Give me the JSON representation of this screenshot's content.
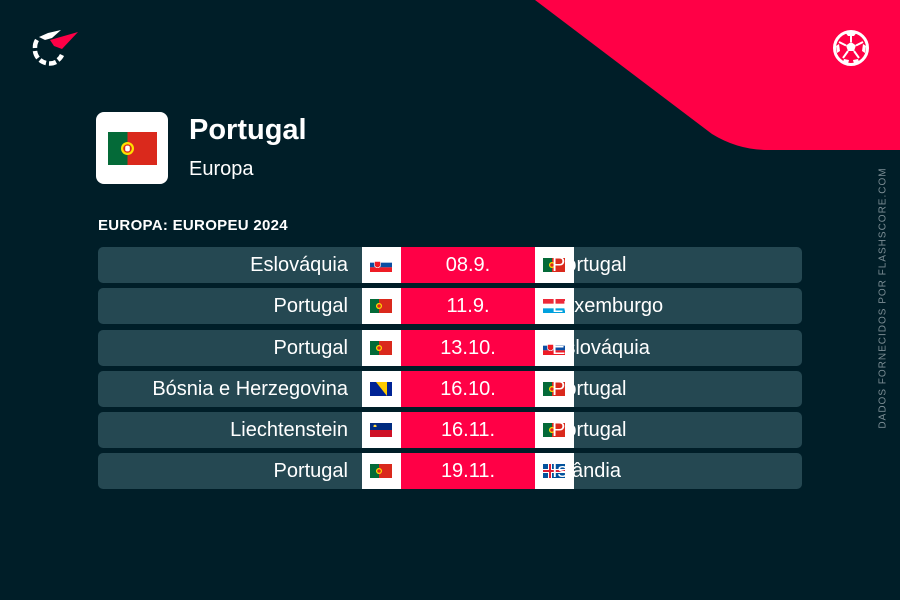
{
  "colors": {
    "background": "#001e28",
    "accent": "#ff0046",
    "row": "#254852",
    "credit": "#7c8e95"
  },
  "brand": {
    "logo_icon": "flashscore-logo-icon",
    "sport_icon": "soccer-ball-icon"
  },
  "team": {
    "name": "Portugal",
    "region": "Europa",
    "flag": "pt"
  },
  "competition": {
    "title": "EUROPA: EUROPEU 2024"
  },
  "matches": [
    {
      "home": "Eslováquia",
      "home_flag": "sk",
      "date": "08.9.",
      "away": "Portugal",
      "away_flag": "pt"
    },
    {
      "home": "Portugal",
      "home_flag": "pt",
      "date": "11.9.",
      "away": "Luxemburgo",
      "away_flag": "lu"
    },
    {
      "home": "Portugal",
      "home_flag": "pt",
      "date": "13.10.",
      "away": "Eslováquia",
      "away_flag": "sk"
    },
    {
      "home": "Bósnia e Herzegovina",
      "home_flag": "ba",
      "date": "16.10.",
      "away": "Portugal",
      "away_flag": "pt"
    },
    {
      "home": "Liechtenstein",
      "home_flag": "li",
      "date": "16.11.",
      "away": "Portugal",
      "away_flag": "pt"
    },
    {
      "home": "Portugal",
      "home_flag": "pt",
      "date": "19.11.",
      "away": "Islândia",
      "away_flag": "is"
    }
  ],
  "credit": "DADOS FORNECIDOS POR FLASHSCORE.COM"
}
